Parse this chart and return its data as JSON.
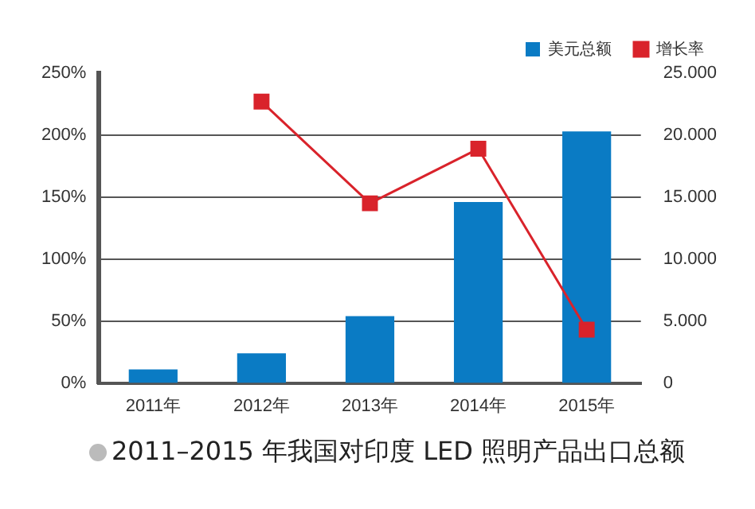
{
  "chart_data": {
    "type": "bar",
    "title": "2011–2015 年我国对印度 LED 照明产品出口总额",
    "categories": [
      "2011年",
      "2012年",
      "2013年",
      "2014年",
      "2015年"
    ],
    "series": [
      {
        "name": "美元总额",
        "axis": "y2",
        "color": "#0a7bc4",
        "values": [
          1100,
          2400,
          5400,
          14600,
          20300
        ]
      },
      {
        "name": "增长率",
        "type": "line",
        "axis": "y",
        "color": "#d9232b",
        "marker": "square",
        "values": [
          null,
          227,
          145,
          189,
          43
        ]
      }
    ],
    "ylim": [
      0,
      250
    ],
    "yticks": [
      {
        "value": 0,
        "label": "0%"
      },
      {
        "value": 50,
        "label": "50%"
      },
      {
        "value": 100,
        "label": "100%"
      },
      {
        "value": 150,
        "label": "150%"
      },
      {
        "value": 200,
        "label": "200%"
      },
      {
        "value": 250,
        "label": "250%"
      }
    ],
    "y2lim": [
      0,
      25000
    ],
    "y2ticks": [
      0,
      {
        "value": 5000,
        "label": "5.000"
      },
      {
        "value": 10000,
        "label": "10.000"
      },
      {
        "value": 15000,
        "label": "15.000"
      },
      {
        "value": 20000,
        "label": "20.000"
      },
      {
        "value": 25000,
        "label": "25.000"
      }
    ],
    "grid": "y",
    "legend": "top right"
  }
}
